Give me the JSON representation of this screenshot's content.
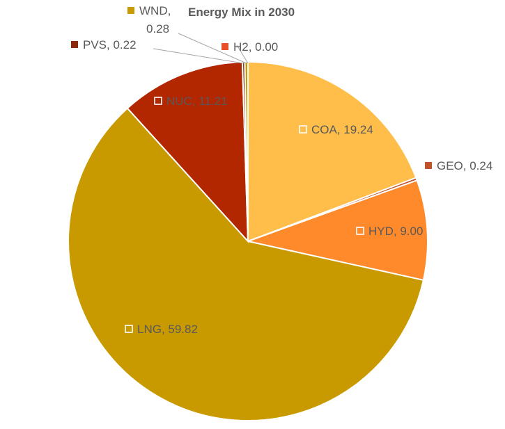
{
  "chart_data": {
    "type": "pie",
    "title": "Energy Mix in 2030",
    "start_angle_deg": 90,
    "slices": [
      {
        "name": "H2",
        "value": 0.0,
        "label": "H2, 0.00",
        "color": "#E8502A"
      },
      {
        "name": "COA",
        "value": 19.24,
        "label": "COA, 19.24",
        "color": "#FFBE4A"
      },
      {
        "name": "GEO",
        "value": 0.24,
        "label": "GEO, 0.24",
        "color": "#C0532A"
      },
      {
        "name": "HYD",
        "value": 9.0,
        "label": "HYD, 9.00",
        "color": "#FF8A2B"
      },
      {
        "name": "LNG",
        "value": 59.82,
        "label": "LNG, 59.82",
        "color": "#C99A00"
      },
      {
        "name": "NUC",
        "value": 11.21,
        "label": "NUC, 11.21",
        "color": "#B22600"
      },
      {
        "name": "PVS",
        "value": 0.22,
        "label": "PVS, 0.22",
        "color": "#8E2A0B"
      },
      {
        "name": "WND",
        "value": 0.28,
        "label": "WND, 0.28",
        "color": "#C99A00"
      }
    ],
    "legend": "none",
    "data_labels": "category and value"
  }
}
